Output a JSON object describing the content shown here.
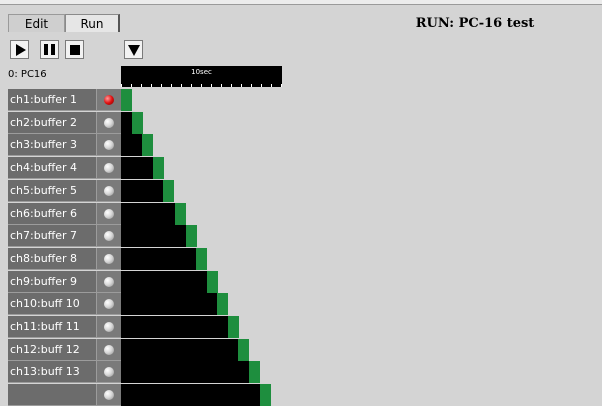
{
  "tabs": {
    "edit_label": "Edit",
    "run_label": "Run"
  },
  "title": "RUN: PC-16 test",
  "device_label": "0: PC16",
  "timeline": {
    "scale_label": "10sec"
  },
  "channels": [
    {
      "label": "ch1:buffer 1",
      "led": "on",
      "fill": 0.0
    },
    {
      "label": "ch2:buffer 2",
      "led": "off",
      "fill": 0.08
    },
    {
      "label": "ch3:buffer 3",
      "led": "off",
      "fill": 0.16
    },
    {
      "label": "ch4:buffer 4",
      "led": "off",
      "fill": 0.24
    },
    {
      "label": "ch5:buffer 5",
      "led": "off",
      "fill": 0.32
    },
    {
      "label": "ch6:buffer 6",
      "led": "off",
      "fill": 0.41
    },
    {
      "label": "ch7:buffer 7",
      "led": "off",
      "fill": 0.49
    },
    {
      "label": "ch8:buffer 8",
      "led": "off",
      "fill": 0.57
    },
    {
      "label": "ch9:buffer 9",
      "led": "off",
      "fill": 0.65
    },
    {
      "label": "ch10:buff 10",
      "led": "off",
      "fill": 0.73
    },
    {
      "label": "ch11:buff 11",
      "led": "off",
      "fill": 0.81
    },
    {
      "label": "ch12:buff 12",
      "led": "off",
      "fill": 0.89
    },
    {
      "label": "ch13:buff 13",
      "led": "off",
      "fill": 0.97
    },
    {
      "label": "",
      "led": "off",
      "fill": 1.05
    }
  ],
  "colors": {
    "bar": "#000000",
    "indicator": "#1e8e3e",
    "led_on": "#e01010"
  },
  "icons": {
    "play": "play-icon",
    "pause": "pause-icon",
    "stop": "stop-icon",
    "menu": "triangle-down-icon"
  }
}
